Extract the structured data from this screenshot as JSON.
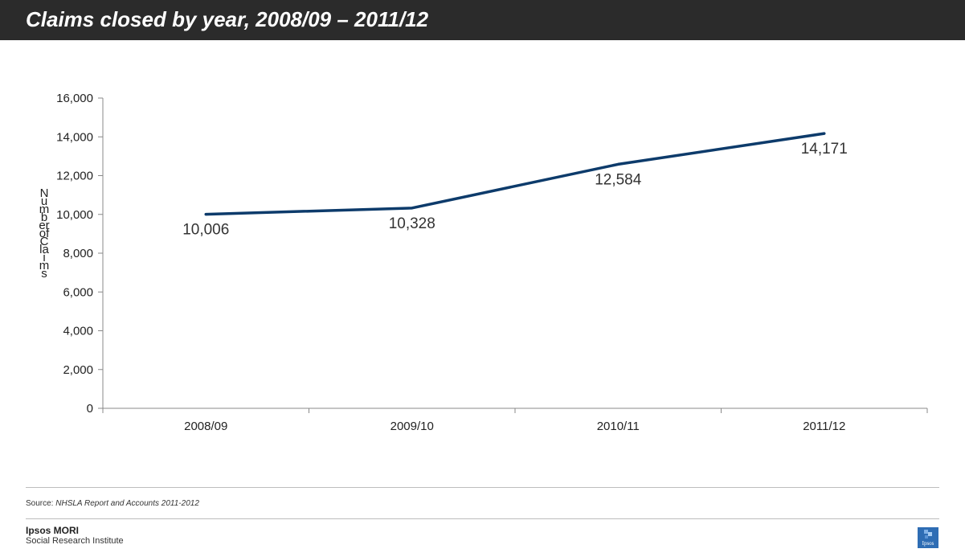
{
  "header": {
    "title": "Claims closed by year, 2008/09 – 2011/12"
  },
  "chart_data": {
    "type": "line",
    "title": "",
    "xlabel": "",
    "ylabel": "Number of Claims",
    "categories": [
      "2008/09",
      "2009/10",
      "2010/11",
      "2011/12"
    ],
    "series": [
      {
        "values": [
          10006,
          10328,
          12584,
          14171
        ],
        "data_labels": [
          "10,006",
          "10,328",
          "12,584",
          "14,171"
        ]
      }
    ],
    "ylim": [
      0,
      16000
    ],
    "yticks": [
      0,
      2000,
      4000,
      6000,
      8000,
      10000,
      12000,
      14000,
      16000
    ],
    "ytick_labels": [
      "0",
      "2,000",
      "4,000",
      "6,000",
      "8,000",
      "10,000",
      "12,000",
      "14,000",
      "16,000"
    ],
    "grid": false,
    "legend": "none",
    "line_color": "#0d3b6b"
  },
  "footer": {
    "source_prefix": "Source:",
    "source_text": "NHSLA Report and Accounts 2011-2012",
    "brand_name": "Ipsos MORI",
    "brand_sub": "Social Research Institute",
    "logo_text": "Ipsos"
  }
}
